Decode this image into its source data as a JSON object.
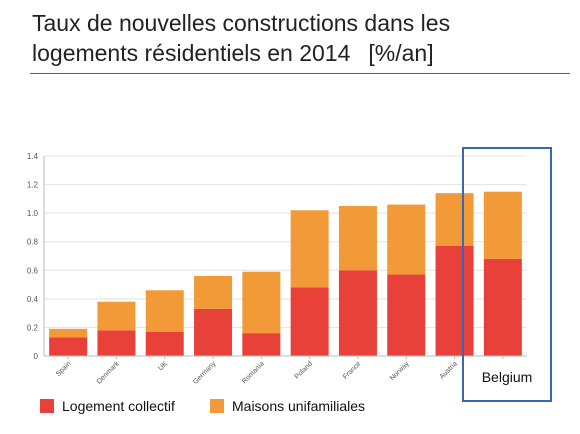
{
  "title": {
    "line1": "Taux de nouvelles constructions dans les",
    "line2": "logements résidentiels en 2014",
    "unit": "[%/an]"
  },
  "colors": {
    "collectif": "#e8413a",
    "unifamiliales": "#f29a38",
    "highlight": "#3a66b6",
    "grid": "#e3e3e3"
  },
  "chart_data": {
    "type": "bar",
    "stacked": true,
    "categories": [
      "Spain",
      "Denmark",
      "UK",
      "Germany",
      "Romania",
      "Poland",
      "France",
      "Norway",
      "Austria",
      "Belgium"
    ],
    "series": [
      {
        "name": "Logement collectif",
        "values": [
          0.13,
          0.18,
          0.17,
          0.33,
          0.16,
          0.48,
          0.6,
          0.57,
          0.77,
          0.68
        ]
      },
      {
        "name": "Maisons unifamiliales",
        "values": [
          0.06,
          0.2,
          0.29,
          0.23,
          0.43,
          0.54,
          0.45,
          0.49,
          0.37,
          0.47
        ]
      }
    ],
    "ylim": [
      0,
      1.4
    ],
    "yticks": [
      "0",
      "0.2",
      "0.4",
      "0.6",
      "0.8",
      "1.0",
      "1.2",
      "1.4"
    ],
    "highlight_label": "Belgium",
    "legend": [
      "Logement collectif",
      "Maisons unifamiliales"
    ],
    "grid": true
  }
}
